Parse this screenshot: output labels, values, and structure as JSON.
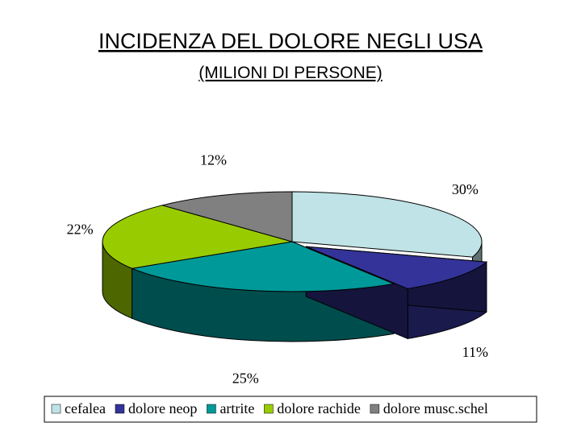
{
  "chart_data": {
    "type": "pie",
    "title": "INCIDENZA DEL DOLORE NEGLI USA",
    "subtitle": "(MILIONI DI PERSONE)",
    "categories": [
      "cefalea",
      "dolore neop",
      "artrite",
      "dolore rachide",
      "dolore musc.schel"
    ],
    "values": [
      30,
      11,
      25,
      22,
      12
    ],
    "value_labels": [
      "30%",
      "11%",
      "25%",
      "22%",
      "12%"
    ],
    "colors": [
      "#bfe3e6",
      "#333399",
      "#009999",
      "#99cc00",
      "#808080"
    ],
    "exploded": [
      false,
      true,
      false,
      false,
      false
    ],
    "legend": "bottom"
  }
}
